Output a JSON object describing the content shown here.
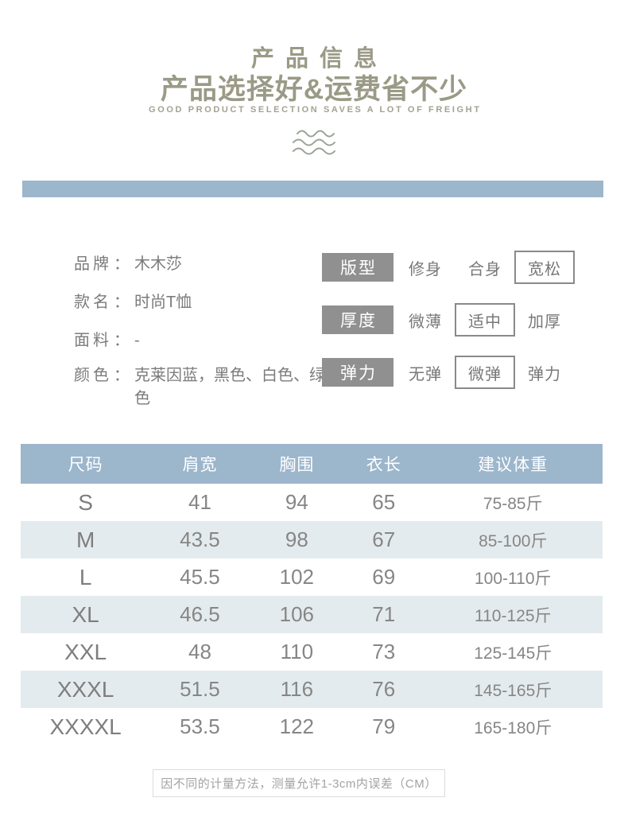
{
  "header": {
    "title": "产品信息",
    "subtitle": "产品选择好&运费省不少",
    "tagline": "GOOD PRODUCT SELECTION SAVES A LOT OF FREIGHT",
    "decoration": "waves-icon"
  },
  "colors": {
    "accent_blue": "#9cb6cc",
    "row_tint": "#e4ebee",
    "label_gray": "#909090",
    "title_olive": "#9a9a86",
    "body_text_gray": "#7b7b7b"
  },
  "detail_separator": "：",
  "details": [
    {
      "label": "品牌",
      "value": "木木莎"
    },
    {
      "label": "款名",
      "value": "时尚T恤"
    },
    {
      "label": "面料",
      "value": "-"
    },
    {
      "label": "颜色",
      "value": "克莱因蓝，黑色、白色、绿色"
    }
  ],
  "attributes": [
    {
      "label": "版型",
      "options": [
        "修身",
        "合身",
        "宽松"
      ],
      "selected": "宽松"
    },
    {
      "label": "厚度",
      "options": [
        "微薄",
        "适中",
        "加厚"
      ],
      "selected": "适中"
    },
    {
      "label": "弹力",
      "options": [
        "无弹",
        "微弹",
        "弹力"
      ],
      "selected": "微弹"
    }
  ],
  "size_table": {
    "headers": [
      "尺码",
      "肩宽",
      "胸围",
      "衣长",
      "建议体重"
    ],
    "rows": [
      [
        "S",
        "41",
        "94",
        "65",
        "75-85斤"
      ],
      [
        "M",
        "43.5",
        "98",
        "67",
        "85-100斤"
      ],
      [
        "L",
        "45.5",
        "102",
        "69",
        "100-110斤"
      ],
      [
        "XL",
        "46.5",
        "106",
        "71",
        "110-125斤"
      ],
      [
        "XXL",
        "48",
        "110",
        "73",
        "125-145斤"
      ],
      [
        "XXXL",
        "51.5",
        "116",
        "76",
        "145-165斤"
      ],
      [
        "XXXXL",
        "53.5",
        "122",
        "79",
        "165-180斤"
      ]
    ]
  },
  "footer_note": "因不同的计量方法，测量允许1-3cm内误差（CM）"
}
